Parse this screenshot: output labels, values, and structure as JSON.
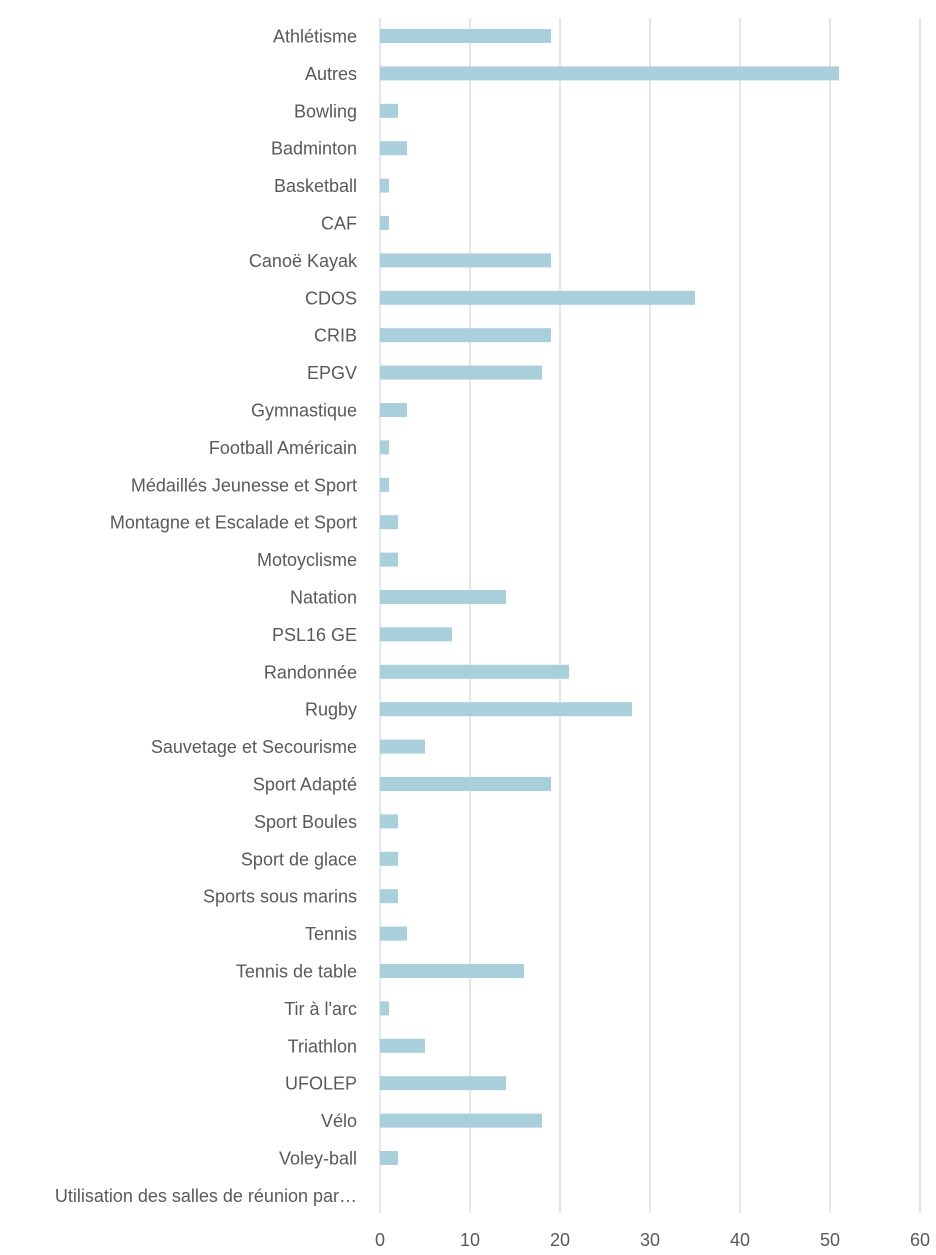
{
  "chart_data": {
    "type": "bar",
    "orientation": "horizontal",
    "categories": [
      "Athlétisme",
      "Autres",
      "Bowling",
      "Badminton",
      "Basketball",
      "CAF",
      "Canoë Kayak",
      "CDOS",
      "CRIB",
      "EPGV",
      "Gymnastique",
      "Football Américain",
      "Médaillés Jeunesse et Sport",
      "Montagne et Escalade et Sport",
      "Motoyclisme",
      "Natation",
      "PSL16 GE",
      "Randonnée",
      "Rugby",
      "Sauvetage et Secourisme",
      "Sport Adapté",
      "Sport Boules",
      "Sport de glace",
      "Sports sous marins",
      "Tennis",
      "Tennis de table",
      "Tir à l'arc",
      "Triathlon",
      "UFOLEP",
      "Vélo",
      "Voley-ball",
      "Utilisation des salles de réunion par…"
    ],
    "values": [
      19,
      51,
      2,
      3,
      1,
      1,
      19,
      35,
      19,
      18,
      3,
      1,
      1,
      2,
      2,
      14,
      8,
      21,
      28,
      5,
      19,
      2,
      2,
      2,
      3,
      16,
      1,
      5,
      14,
      18,
      2,
      0
    ],
    "x_ticks": [
      "0",
      "10",
      "20",
      "30",
      "40",
      "50",
      "60"
    ],
    "xlim": [
      0,
      60
    ],
    "grid": true,
    "legend": "none",
    "title": "",
    "xlabel": "",
    "ylabel": "",
    "colors": {
      "bar": "#a9cfdb",
      "grid": "#d9d9d9",
      "text": "#595959"
    }
  }
}
